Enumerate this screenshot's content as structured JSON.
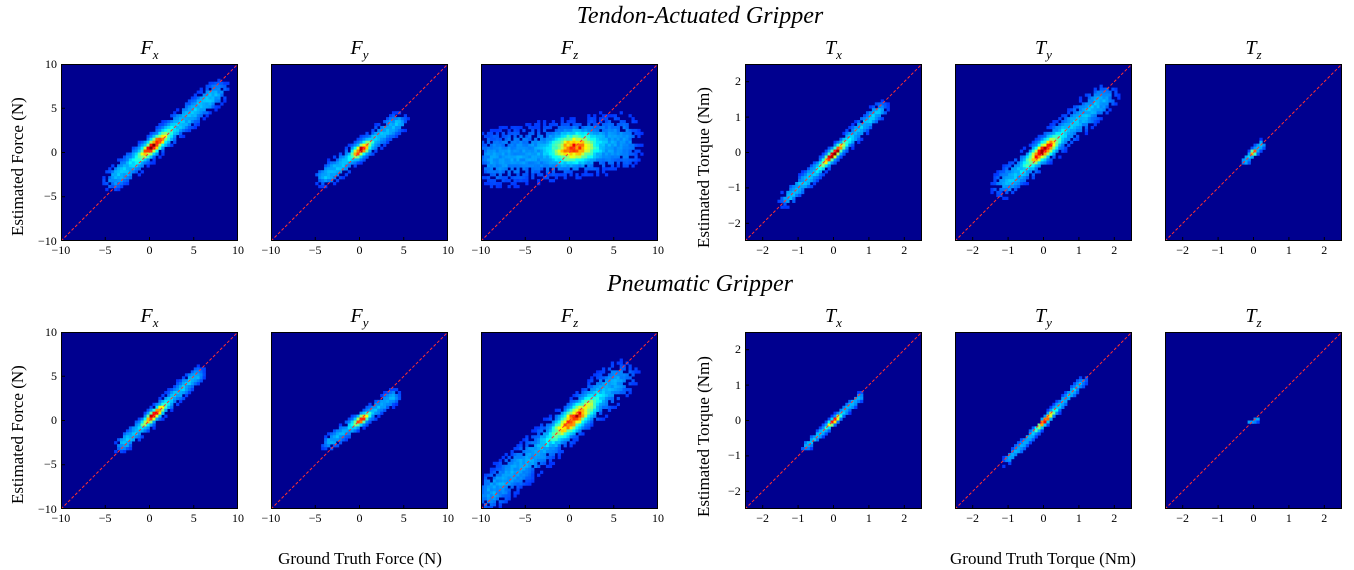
{
  "figure": {
    "rows": [
      {
        "title": "Tendon-Actuated Gripper"
      },
      {
        "title": "Pneumatic Gripper"
      }
    ],
    "force_ylabel": "Estimated Force (N)",
    "torque_ylabel": "Estimated Torque (Nm)",
    "force_xlabel": "Ground Truth Force (N)",
    "torque_xlabel": "Ground Truth Torque (Nm)"
  },
  "colors": {
    "background": "#00008F",
    "diagonal": "#ff3030"
  },
  "chart_data": [
    {
      "type": "heatmap",
      "row": 0,
      "var": "F",
      "sub": "x",
      "kind": "force",
      "xlim": [
        -10,
        10
      ],
      "ylim": [
        -10,
        10
      ],
      "xticks": [
        -10,
        -5,
        0,
        5,
        10
      ],
      "yticks": [
        -10,
        -5,
        0,
        5,
        10
      ],
      "center": [
        0.5,
        0.8
      ],
      "dir": [
        6.5,
        5.5
      ],
      "along": [
        -0.6,
        1.0
      ],
      "perp": 1.0,
      "intensity": 1.0
    },
    {
      "type": "heatmap",
      "row": 0,
      "var": "F",
      "sub": "y",
      "kind": "force",
      "xlim": [
        -10,
        10
      ],
      "ylim": [
        -10,
        10
      ],
      "xticks": [
        -10,
        -5,
        0,
        5,
        10
      ],
      "yticks": [],
      "center": [
        0.2,
        0.3
      ],
      "dir": [
        4.0,
        3.0
      ],
      "along": [
        -1.0,
        1.0
      ],
      "perp": 0.9,
      "intensity": 0.95
    },
    {
      "type": "heatmap",
      "row": 0,
      "var": "F",
      "sub": "z",
      "kind": "force",
      "xlim": [
        -10,
        10
      ],
      "ylim": [
        -10,
        10
      ],
      "xticks": [
        -10,
        -5,
        0,
        5,
        10
      ],
      "yticks": [],
      "center": [
        0.5,
        0.5
      ],
      "dir": [
        9.0,
        1.2
      ],
      "along": [
        -1.0,
        0.6
      ],
      "perp": 2.6,
      "intensity": 0.8
    },
    {
      "type": "heatmap",
      "row": 0,
      "var": "T",
      "sub": "x",
      "kind": "torque",
      "xlim": [
        -2.5,
        2.5
      ],
      "ylim": [
        -2.5,
        2.5
      ],
      "xticks": [
        -2,
        -1,
        0,
        1,
        2
      ],
      "yticks": [
        -2,
        -1,
        0,
        1,
        2
      ],
      "center": [
        0.0,
        -0.05
      ],
      "dir": [
        1.2,
        1.15
      ],
      "along": [
        -1.0,
        1.0
      ],
      "perp": 0.17,
      "intensity": 1.0
    },
    {
      "type": "heatmap",
      "row": 0,
      "var": "T",
      "sub": "y",
      "kind": "torque",
      "xlim": [
        -2.5,
        2.5
      ],
      "ylim": [
        -2.5,
        2.5
      ],
      "xticks": [
        -2,
        -1,
        0,
        1,
        2
      ],
      "yticks": [],
      "center": [
        0.0,
        0.05
      ],
      "dir": [
        1.6,
        1.4
      ],
      "along": [
        -0.6,
        1.0
      ],
      "perp": 0.3,
      "intensity": 0.95
    },
    {
      "type": "heatmap",
      "row": 0,
      "var": "T",
      "sub": "z",
      "kind": "torque",
      "xlim": [
        -2.5,
        2.5
      ],
      "ylim": [
        -2.5,
        2.5
      ],
      "xticks": [
        -2,
        -1,
        0,
        1,
        2
      ],
      "yticks": [],
      "center": [
        0.0,
        0.0
      ],
      "dir": [
        0.25,
        0.25
      ],
      "along": [
        -1.0,
        1.0
      ],
      "perp": 0.1,
      "intensity": 1.0
    },
    {
      "type": "heatmap",
      "row": 1,
      "var": "F",
      "sub": "x",
      "kind": "force",
      "xlim": [
        -10,
        10
      ],
      "ylim": [
        -10,
        10
      ],
      "xticks": [
        -10,
        -5,
        0,
        5,
        10
      ],
      "yticks": [
        -10,
        -5,
        0,
        5,
        10
      ],
      "center": [
        0.5,
        0.6
      ],
      "dir": [
        4.5,
        4.2
      ],
      "along": [
        -0.7,
        1.0
      ],
      "perp": 0.7,
      "intensity": 1.0
    },
    {
      "type": "heatmap",
      "row": 1,
      "var": "F",
      "sub": "y",
      "kind": "force",
      "xlim": [
        -10,
        10
      ],
      "ylim": [
        -10,
        10
      ],
      "xticks": [
        -10,
        -5,
        0,
        5,
        10
      ],
      "yticks": [],
      "center": [
        0.2,
        0.1
      ],
      "dir": [
        3.5,
        2.5
      ],
      "along": [
        -1.0,
        1.0
      ],
      "perp": 0.7,
      "intensity": 0.9
    },
    {
      "type": "heatmap",
      "row": 1,
      "var": "F",
      "sub": "z",
      "kind": "force",
      "xlim": [
        -10,
        10
      ],
      "ylim": [
        -10,
        10
      ],
      "xticks": [
        -10,
        -5,
        0,
        5,
        10
      ],
      "yticks": [],
      "center": [
        0.5,
        0.2
      ],
      "dir": [
        9.0,
        8.0
      ],
      "along": [
        -1.0,
        0.5
      ],
      "perp": 1.6,
      "intensity": 0.85
    },
    {
      "type": "heatmap",
      "row": 1,
      "var": "T",
      "sub": "x",
      "kind": "torque",
      "xlim": [
        -2.5,
        2.5
      ],
      "ylim": [
        -2.5,
        2.5
      ],
      "xticks": [
        -2,
        -1,
        0,
        1,
        2
      ],
      "yticks": [
        -2,
        -1,
        0,
        1,
        2
      ],
      "center": [
        0.0,
        -0.02
      ],
      "dir": [
        0.7,
        0.65
      ],
      "along": [
        -1.0,
        1.0
      ],
      "perp": 0.1,
      "intensity": 1.0
    },
    {
      "type": "heatmap",
      "row": 1,
      "var": "T",
      "sub": "y",
      "kind": "torque",
      "xlim": [
        -2.5,
        2.5
      ],
      "ylim": [
        -2.5,
        2.5
      ],
      "xticks": [
        -2,
        -1,
        0,
        1,
        2
      ],
      "yticks": [],
      "center": [
        0.05,
        0.0
      ],
      "dir": [
        0.95,
        1.0
      ],
      "along": [
        -1.0,
        1.0
      ],
      "perp": 0.11,
      "intensity": 0.95
    },
    {
      "type": "heatmap",
      "row": 1,
      "var": "T",
      "sub": "z",
      "kind": "torque",
      "xlim": [
        -2.5,
        2.5
      ],
      "ylim": [
        -2.5,
        2.5
      ],
      "xticks": [
        -2,
        -1,
        0,
        1,
        2
      ],
      "yticks": [],
      "center": [
        0.0,
        0.0
      ],
      "dir": [
        0.12,
        0.02
      ],
      "along": [
        -1.0,
        1.0
      ],
      "perp": 0.05,
      "intensity": 1.0
    }
  ]
}
